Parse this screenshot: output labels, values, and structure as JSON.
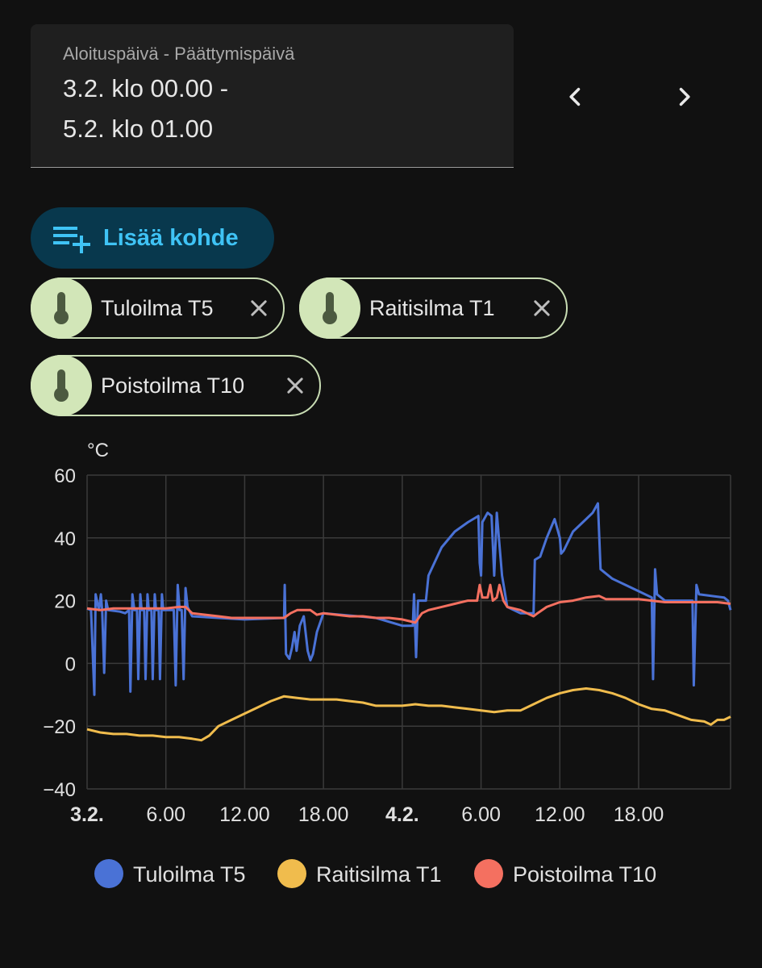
{
  "date_range": {
    "label": "Aloituspäivä - Päättymispäivä",
    "line1": "3.2. klo 00.00 -",
    "line2": "5.2. klo 01.00"
  },
  "nav": {
    "prev_icon": "chevron-left-icon",
    "next_icon": "chevron-right-icon"
  },
  "add_target": {
    "label": "Lisää kohde",
    "icon": "playlist-plus-icon",
    "color": "#3fc3f5"
  },
  "chips": [
    {
      "label": "Tuloilma T5",
      "icon": "thermometer-icon"
    },
    {
      "label": "Raitisilma T1",
      "icon": "thermometer-icon"
    },
    {
      "label": "Poistoilma T10",
      "icon": "thermometer-icon"
    }
  ],
  "chart_data": {
    "type": "line",
    "ylabel": "°C",
    "ylim": [
      -40,
      60
    ],
    "yticks": [
      60,
      40,
      20,
      0,
      -20,
      -40
    ],
    "xlim": [
      0,
      49
    ],
    "xticks": [
      {
        "x": 0,
        "label": "3.2.",
        "bold": true
      },
      {
        "x": 6,
        "label": "6.00",
        "bold": false
      },
      {
        "x": 12,
        "label": "12.00",
        "bold": false
      },
      {
        "x": 18,
        "label": "18.00",
        "bold": false
      },
      {
        "x": 24,
        "label": "4.2.",
        "bold": true
      },
      {
        "x": 30,
        "label": "6.00",
        "bold": false
      },
      {
        "x": 36,
        "label": "12.00",
        "bold": false
      },
      {
        "x": 42,
        "label": "18.00",
        "bold": false
      }
    ],
    "grid": true,
    "legend_position": "bottom",
    "series": [
      {
        "name": "Tuloilma T5",
        "color": "#4a72d6",
        "points": [
          [
            0,
            17.5
          ],
          [
            0.3,
            17
          ],
          [
            0.55,
            -10
          ],
          [
            0.65,
            22
          ],
          [
            0.9,
            17
          ],
          [
            1.05,
            22
          ],
          [
            1.15,
            17
          ],
          [
            1.3,
            -3
          ],
          [
            1.45,
            20
          ],
          [
            1.6,
            17
          ],
          [
            2.5,
            16.5
          ],
          [
            2.9,
            16
          ],
          [
            3.2,
            17
          ],
          [
            3.3,
            -9
          ],
          [
            3.45,
            22
          ],
          [
            3.6,
            17
          ],
          [
            3.8,
            17
          ],
          [
            3.9,
            -5
          ],
          [
            4.05,
            22
          ],
          [
            4.15,
            17
          ],
          [
            4.35,
            17
          ],
          [
            4.45,
            -5
          ],
          [
            4.6,
            22
          ],
          [
            4.7,
            17
          ],
          [
            4.9,
            17
          ],
          [
            5.0,
            -5
          ],
          [
            5.15,
            22
          ],
          [
            5.25,
            17
          ],
          [
            5.45,
            17
          ],
          [
            5.55,
            -5
          ],
          [
            5.7,
            22
          ],
          [
            5.8,
            17
          ],
          [
            6.6,
            17
          ],
          [
            6.75,
            -7
          ],
          [
            6.9,
            25
          ],
          [
            7.05,
            17
          ],
          [
            7.2,
            17
          ],
          [
            7.35,
            -5
          ],
          [
            7.5,
            24
          ],
          [
            7.65,
            18
          ],
          [
            8,
            15
          ],
          [
            12,
            14
          ],
          [
            15,
            14.5
          ],
          [
            15.05,
            25
          ],
          [
            15.15,
            3
          ],
          [
            15.4,
            1.5
          ],
          [
            15.6,
            5
          ],
          [
            15.8,
            10
          ],
          [
            15.95,
            4
          ],
          [
            16.2,
            12
          ],
          [
            16.5,
            15
          ],
          [
            16.8,
            4
          ],
          [
            17,
            1
          ],
          [
            17.2,
            3
          ],
          [
            17.5,
            10
          ],
          [
            18,
            16
          ],
          [
            22,
            14.5
          ],
          [
            24,
            12
          ],
          [
            24.8,
            12
          ],
          [
            24.9,
            22
          ],
          [
            25.05,
            2
          ],
          [
            25.2,
            20
          ],
          [
            25.8,
            20
          ],
          [
            26,
            28
          ],
          [
            27,
            37
          ],
          [
            28,
            42
          ],
          [
            29,
            45
          ],
          [
            29.8,
            47
          ],
          [
            29.9,
            32
          ],
          [
            30,
            28
          ],
          [
            30.1,
            45
          ],
          [
            30.5,
            48
          ],
          [
            30.8,
            47
          ],
          [
            31,
            28
          ],
          [
            31.2,
            48
          ],
          [
            31.6,
            28
          ],
          [
            32,
            18
          ],
          [
            33,
            16
          ],
          [
            34,
            16
          ],
          [
            34.1,
            33
          ],
          [
            34.5,
            34
          ],
          [
            35,
            40
          ],
          [
            35.6,
            46
          ],
          [
            36,
            40
          ],
          [
            36.1,
            35
          ],
          [
            36.3,
            36
          ],
          [
            37,
            42
          ],
          [
            38,
            46
          ],
          [
            38.5,
            48
          ],
          [
            38.9,
            51
          ],
          [
            39.1,
            30
          ],
          [
            40,
            27
          ],
          [
            41,
            25
          ],
          [
            42,
            23
          ],
          [
            43,
            21
          ],
          [
            43.1,
            -5
          ],
          [
            43.25,
            30
          ],
          [
            43.4,
            22
          ],
          [
            44,
            20
          ],
          [
            46.1,
            20
          ],
          [
            46.2,
            -7
          ],
          [
            46.4,
            25
          ],
          [
            46.6,
            22
          ],
          [
            48.5,
            21
          ],
          [
            48.8,
            20
          ],
          [
            49,
            17
          ]
        ]
      },
      {
        "name": "Raitisilma T1",
        "color": "#f0bc4d",
        "points": [
          [
            0,
            -21
          ],
          [
            1,
            -22
          ],
          [
            2,
            -22.5
          ],
          [
            3,
            -22.5
          ],
          [
            4,
            -23
          ],
          [
            5,
            -23
          ],
          [
            6,
            -23.5
          ],
          [
            7,
            -23.5
          ],
          [
            8,
            -24
          ],
          [
            8.7,
            -24.5
          ],
          [
            9.3,
            -23
          ],
          [
            10,
            -20
          ],
          [
            11,
            -18
          ],
          [
            12,
            -16
          ],
          [
            13,
            -14
          ],
          [
            14,
            -12
          ],
          [
            15,
            -10.5
          ],
          [
            16,
            -11
          ],
          [
            17,
            -11.5
          ],
          [
            18,
            -11.5
          ],
          [
            19,
            -11.5
          ],
          [
            20,
            -12
          ],
          [
            21,
            -12.5
          ],
          [
            22,
            -13.5
          ],
          [
            23,
            -13.5
          ],
          [
            24,
            -13.5
          ],
          [
            25,
            -13
          ],
          [
            26,
            -13.5
          ],
          [
            27,
            -13.5
          ],
          [
            28,
            -14
          ],
          [
            29,
            -14.5
          ],
          [
            30,
            -15
          ],
          [
            31,
            -15.5
          ],
          [
            32,
            -15
          ],
          [
            33,
            -15
          ],
          [
            34,
            -13
          ],
          [
            35,
            -11
          ],
          [
            36,
            -9.5
          ],
          [
            37,
            -8.5
          ],
          [
            38,
            -8
          ],
          [
            39,
            -8.5
          ],
          [
            40,
            -9.5
          ],
          [
            41,
            -11
          ],
          [
            42,
            -13
          ],
          [
            43,
            -14.5
          ],
          [
            44,
            -15
          ],
          [
            45,
            -16.5
          ],
          [
            46,
            -18
          ],
          [
            47,
            -18.5
          ],
          [
            47.5,
            -19.5
          ],
          [
            48,
            -18
          ],
          [
            48.5,
            -18
          ],
          [
            49,
            -17
          ]
        ]
      },
      {
        "name": "Poistoilma T10",
        "color": "#f47060",
        "points": [
          [
            0,
            17.5
          ],
          [
            1,
            17
          ],
          [
            2,
            17.5
          ],
          [
            3,
            17.5
          ],
          [
            4,
            17.5
          ],
          [
            5,
            17.5
          ],
          [
            6,
            17.5
          ],
          [
            7,
            18
          ],
          [
            7.5,
            18
          ],
          [
            8,
            16
          ],
          [
            9,
            15.5
          ],
          [
            10,
            15
          ],
          [
            11,
            14.5
          ],
          [
            12,
            14.5
          ],
          [
            13,
            14.5
          ],
          [
            14,
            14.5
          ],
          [
            15,
            14.5
          ],
          [
            15.5,
            16
          ],
          [
            16,
            17
          ],
          [
            16.5,
            17
          ],
          [
            17,
            17
          ],
          [
            17.5,
            15.5
          ],
          [
            18,
            16
          ],
          [
            19,
            15.5
          ],
          [
            20,
            15
          ],
          [
            21,
            15
          ],
          [
            22,
            14.5
          ],
          [
            23,
            14.5
          ],
          [
            24,
            14
          ],
          [
            25,
            13
          ],
          [
            25.5,
            16
          ],
          [
            26,
            17
          ],
          [
            27,
            18
          ],
          [
            28,
            19
          ],
          [
            29,
            20
          ],
          [
            29.7,
            20
          ],
          [
            29.9,
            25
          ],
          [
            30.1,
            21
          ],
          [
            30.5,
            21
          ],
          [
            30.7,
            25
          ],
          [
            30.9,
            20
          ],
          [
            31.2,
            21
          ],
          [
            31.4,
            25
          ],
          [
            31.7,
            20
          ],
          [
            32,
            18
          ],
          [
            33,
            17
          ],
          [
            34,
            15
          ],
          [
            34.3,
            16
          ],
          [
            35,
            18
          ],
          [
            36,
            19.5
          ],
          [
            37,
            20
          ],
          [
            38,
            21
          ],
          [
            39,
            21.5
          ],
          [
            39.5,
            20.5
          ],
          [
            40,
            20.5
          ],
          [
            41,
            20.5
          ],
          [
            42,
            20.5
          ],
          [
            43,
            20
          ],
          [
            44,
            19.5
          ],
          [
            45,
            19.5
          ],
          [
            46,
            19.5
          ],
          [
            47,
            19.5
          ],
          [
            48,
            19.5
          ],
          [
            49,
            19
          ]
        ]
      }
    ]
  }
}
